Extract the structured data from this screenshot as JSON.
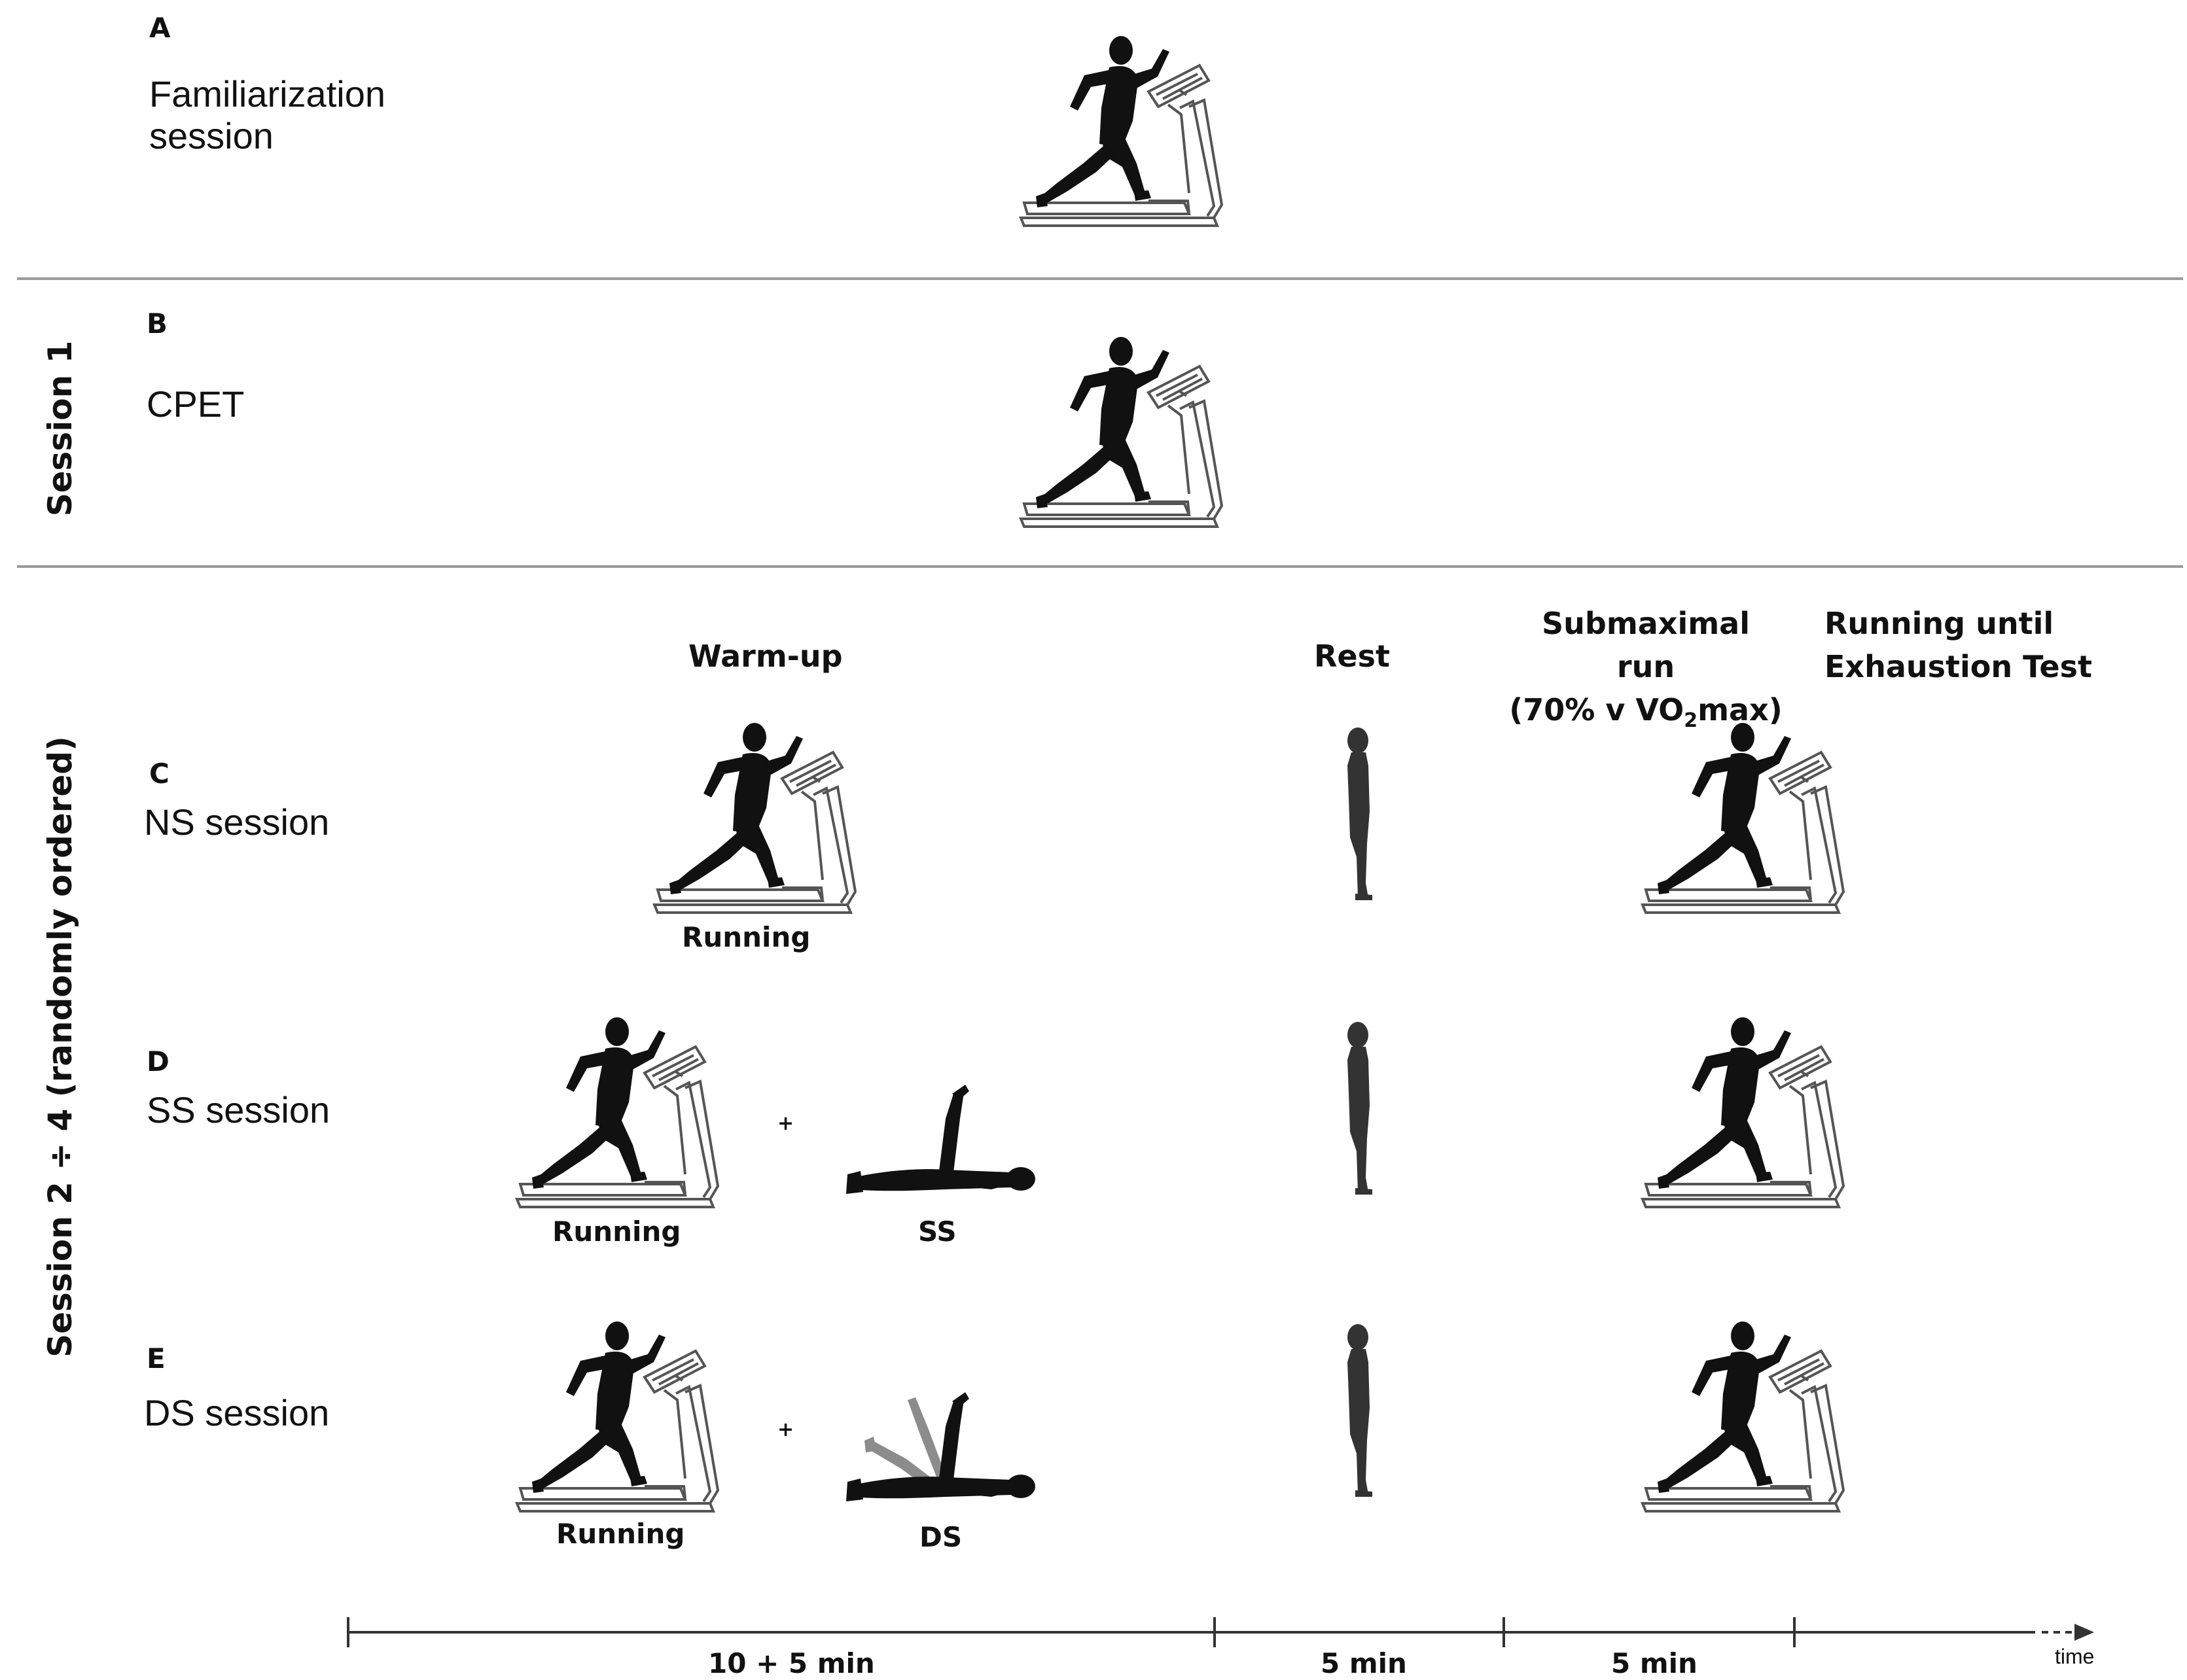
{
  "panels": {
    "A": {
      "letter": "A",
      "name_line1": "Familiarization",
      "name_line2": "session"
    },
    "B": {
      "letter": "B",
      "name": "CPET"
    },
    "C": {
      "letter": "C",
      "name": "NS session"
    },
    "D": {
      "letter": "D",
      "name": "SS session"
    },
    "E": {
      "letter": "E",
      "name": "DS session"
    }
  },
  "side_labels": {
    "session1": "Session  1",
    "session2_4": "Session 2 ÷ 4 (randomly ordered)"
  },
  "columns": {
    "warmup": "Warm-up",
    "rest": "Rest",
    "submax_line1": "Submaximal run",
    "submax_line2_pre": "(70% v VO",
    "submax_line2_sub": "2",
    "submax_line2_post": "max)",
    "exhaustion_line1": "Running until",
    "exhaustion_line2": "Exhaustion Test"
  },
  "captions": {
    "running": "Running",
    "ss": "SS",
    "ds": "DS",
    "plus": "+"
  },
  "timeline": {
    "warmup_duration": "10 + 5 min",
    "rest_duration": "5 min",
    "submax_duration": "5 min",
    "time_label": "time"
  },
  "colors": {
    "silhouette": "#111111",
    "standing": "#333333",
    "ds_moving_leg": "#8c8c8c",
    "separator": "#9a9a9a",
    "treadmill_stroke": "#555555"
  }
}
